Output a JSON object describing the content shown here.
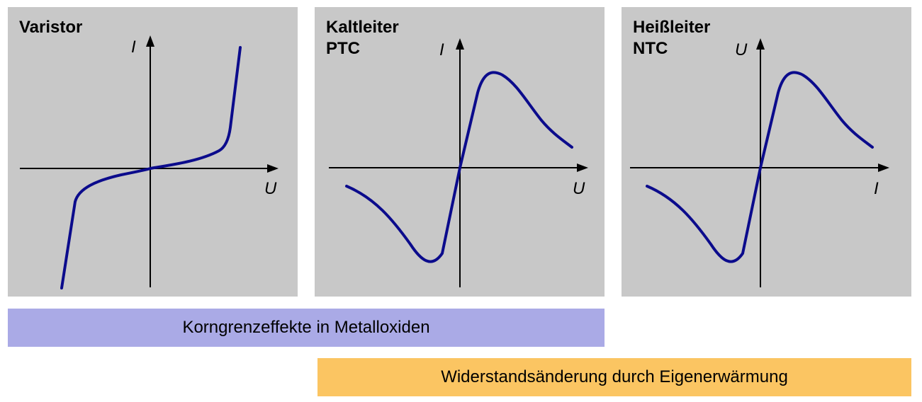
{
  "colors": {
    "panel_background": "#c8c8c8",
    "curve": "#0b0b8c",
    "axis": "#000000",
    "banner_metal_oxide": "#aaaae6",
    "banner_self_heating": "#fbc562"
  },
  "panels": [
    {
      "title_lines": [
        "Varistor"
      ],
      "x_axis_label": "U",
      "y_axis_label": "I"
    },
    {
      "title_lines": [
        "Kaltleiter",
        "PTC"
      ],
      "x_axis_label": "U",
      "y_axis_label": "I"
    },
    {
      "title_lines": [
        "Heißleiter",
        "NTC"
      ],
      "x_axis_label": "I",
      "y_axis_label": "U"
    }
  ],
  "banners": {
    "metal_oxide": "Korngrenzeffekte in Metalloxiden",
    "self_heating": "Widerstandsänderung durch Eigenerwärmung"
  }
}
